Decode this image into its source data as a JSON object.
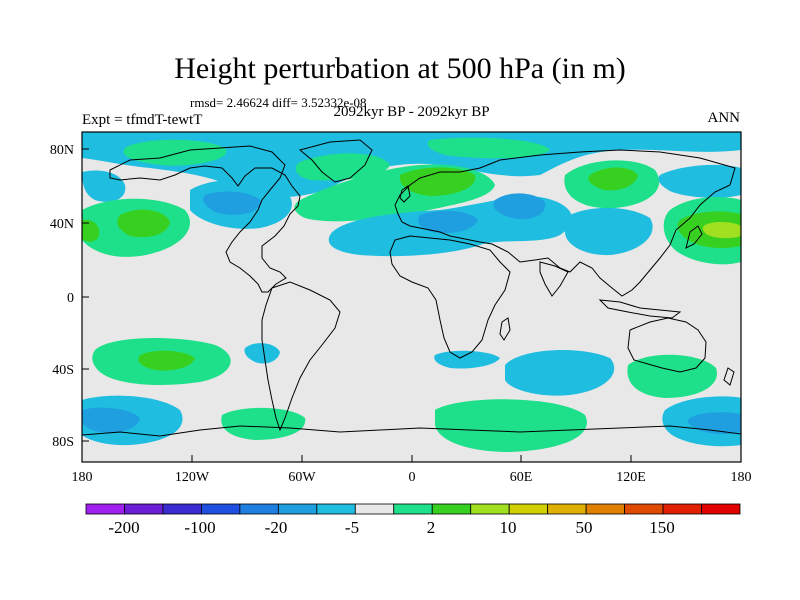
{
  "title": "Height perturbation at 500 hPa (in m)",
  "stats": "rmsd= 2.46624 diff= 3.52332e-08",
  "subtitle": "2092kyr BP - 2092kyr BP",
  "left_label": "Expt = tfmdT-tewtT",
  "right_label": "ANN",
  "axes": {
    "lat_ticks": [
      "80N",
      "40N",
      "0",
      "40S",
      "80S"
    ],
    "lon_ticks": [
      "180",
      "120W",
      "60W",
      "0",
      "60E",
      "120E",
      "180"
    ]
  },
  "colorbar": {
    "colors": [
      "#a020f0",
      "#6a1fd6",
      "#3a2bd0",
      "#1f4fe0",
      "#1f7fe0",
      "#1f9fe0",
      "#1fbde0",
      "#e8e8e8",
      "#1fe08a",
      "#38d020",
      "#a0e020",
      "#d0d000",
      "#e0b000",
      "#e08000",
      "#e04a00",
      "#e02000",
      "#e00000"
    ],
    "labels": [
      "-200",
      "-100",
      "-20",
      "-5",
      "2",
      "10",
      "50",
      "150"
    ]
  },
  "fields": {
    "background": "#e8e8e8",
    "light_blue": "#1fbde0",
    "blue": "#1f9fe0",
    "dark_blue": "#1f7fe0",
    "teal": "#1fe08a",
    "green": "#38d020",
    "yellow_green": "#a0e020"
  }
}
